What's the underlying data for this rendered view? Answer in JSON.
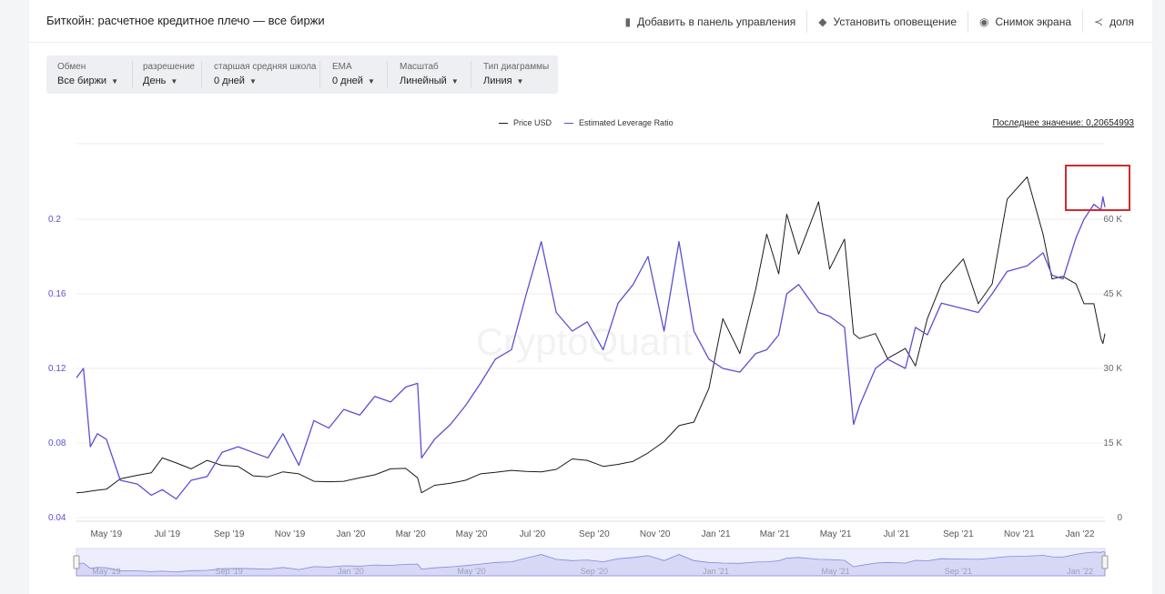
{
  "header": {
    "title": "Биткойн: расчетное кредитное плечо — все биржи",
    "actions": [
      {
        "icon": "dashboard-icon",
        "glyph": "▮",
        "label": "Добавить в панель управления"
      },
      {
        "icon": "bell-icon",
        "glyph": "◆",
        "label": "Установить оповещение"
      },
      {
        "icon": "camera-icon",
        "glyph": "◉",
        "label": "Снимок экрана"
      },
      {
        "icon": "share-icon",
        "glyph": "≺",
        "label": "доля"
      }
    ]
  },
  "toolbar": [
    {
      "label": "Обмен",
      "value": "Все биржи"
    },
    {
      "label": "разрешение",
      "value": "День"
    },
    {
      "label": "старшая средняя школа",
      "value": "0 дней"
    },
    {
      "label": "EMA",
      "value": "0 дней"
    },
    {
      "label": "Масштаб",
      "value": "Линейный"
    },
    {
      "label": "Тип диаграммы",
      "value": "Линия"
    }
  ],
  "last_value": "Последнее значение: 0,20654993",
  "watermark": "CryptoQuant",
  "chart_data": {
    "type": "line",
    "grid": true,
    "legend": "top-center",
    "x": [
      "2019-04-01",
      "2019-04-08",
      "2019-04-15",
      "2019-04-22",
      "2019-05-01",
      "2019-05-15",
      "2019-06-01",
      "2019-06-15",
      "2019-06-26",
      "2019-07-10",
      "2019-07-25",
      "2019-08-10",
      "2019-08-25",
      "2019-09-10",
      "2019-09-25",
      "2019-10-10",
      "2019-10-25",
      "2019-11-10",
      "2019-11-25",
      "2019-12-10",
      "2019-12-25",
      "2020-01-10",
      "2020-01-25",
      "2020-02-10",
      "2020-02-25",
      "2020-03-08",
      "2020-03-12",
      "2020-03-25",
      "2020-04-10",
      "2020-04-25",
      "2020-05-10",
      "2020-05-25",
      "2020-06-10",
      "2020-06-25",
      "2020-07-10",
      "2020-07-25",
      "2020-08-10",
      "2020-08-25",
      "2020-09-10",
      "2020-09-25",
      "2020-10-10",
      "2020-10-25",
      "2020-11-10",
      "2020-11-25",
      "2020-12-10",
      "2020-12-25",
      "2021-01-08",
      "2021-01-25",
      "2021-02-10",
      "2021-02-21",
      "2021-03-05",
      "2021-03-13",
      "2021-03-25",
      "2021-04-14",
      "2021-04-25",
      "2021-05-10",
      "2021-05-19",
      "2021-05-25",
      "2021-06-10",
      "2021-06-22",
      "2021-07-10",
      "2021-07-20",
      "2021-08-01",
      "2021-08-15",
      "2021-09-06",
      "2021-09-21",
      "2021-10-05",
      "2021-10-20",
      "2021-11-09",
      "2021-11-25",
      "2021-12-04",
      "2021-12-15",
      "2021-12-28",
      "2022-01-05",
      "2022-01-15",
      "2022-01-22",
      "2022-01-24",
      "2022-01-26"
    ],
    "series": [
      {
        "name": "Price USD",
        "axis": "right",
        "color": "#1a1a1a",
        "values": [
          5000,
          5100,
          5300,
          5500,
          5700,
          7800,
          8500,
          9000,
          12000,
          11000,
          9800,
          11500,
          10500,
          10300,
          8400,
          8200,
          9200,
          8800,
          7300,
          7200,
          7300,
          8000,
          8600,
          9800,
          9900,
          8000,
          5000,
          6500,
          6900,
          7500,
          8800,
          9100,
          9500,
          9300,
          9200,
          9700,
          11800,
          11500,
          10300,
          10700,
          11300,
          13000,
          15300,
          18500,
          19200,
          26000,
          40000,
          33000,
          46000,
          57000,
          49000,
          61000,
          53000,
          63500,
          50000,
          56000,
          37000,
          36000,
          37000,
          32000,
          34000,
          30500,
          40000,
          47000,
          52000,
          43000,
          47000,
          64000,
          68500,
          57000,
          48000,
          48500,
          47000,
          43000,
          43000,
          36000,
          35000,
          37000
        ]
      },
      {
        "name": "Estimated Leverage Ratio",
        "axis": "left",
        "color": "#5b4fd1",
        "values": [
          0.115,
          0.12,
          0.078,
          0.085,
          0.082,
          0.06,
          0.058,
          0.052,
          0.055,
          0.05,
          0.06,
          0.062,
          0.075,
          0.078,
          0.075,
          0.072,
          0.085,
          0.068,
          0.092,
          0.088,
          0.098,
          0.095,
          0.105,
          0.102,
          0.11,
          0.112,
          0.072,
          0.082,
          0.09,
          0.1,
          0.112,
          0.125,
          0.13,
          0.16,
          0.188,
          0.15,
          0.14,
          0.145,
          0.13,
          0.155,
          0.165,
          0.18,
          0.14,
          0.188,
          0.14,
          0.125,
          0.12,
          0.118,
          0.128,
          0.13,
          0.138,
          0.16,
          0.165,
          0.15,
          0.148,
          0.142,
          0.09,
          0.1,
          0.12,
          0.125,
          0.12,
          0.142,
          0.138,
          0.155,
          0.152,
          0.15,
          0.16,
          0.172,
          0.175,
          0.182,
          0.17,
          0.168,
          0.19,
          0.2,
          0.208,
          0.205,
          0.212,
          0.2065
        ]
      }
    ],
    "x_ticks": [
      "May '19",
      "Jul '19",
      "Sep '19",
      "Nov '19",
      "Jan '20",
      "Mar '20",
      "May '20",
      "Jul '20",
      "Sep '20",
      "Nov '20",
      "Jan '21",
      "Mar '21",
      "May '21",
      "Jul '21",
      "Sep '21",
      "Nov '21",
      "Jan '22"
    ],
    "navigator_ticks": [
      "May '19",
      "Sep '19",
      "Jan '20",
      "May '20",
      "Sep '20",
      "Jan '21",
      "May '21",
      "Sep '21",
      "Jan '22"
    ],
    "y_left_ticks": [
      "0.04",
      "0.08",
      "0.12",
      "0.16",
      "0.2"
    ],
    "y_left_range": [
      0.04,
      0.2
    ],
    "y_right_ticks": [
      "0",
      "15 K",
      "30 K",
      "45 K",
      "60 K"
    ],
    "y_right_range": [
      0,
      60000
    ],
    "y_left_color": "#5b4fd1",
    "y_right_color": "#666666"
  }
}
